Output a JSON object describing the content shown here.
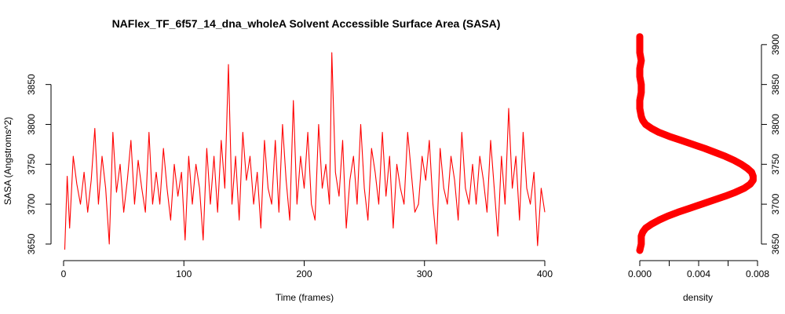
{
  "chart_data": [
    {
      "type": "line",
      "title": "NAFlex_TF_6f57_14_dna_wholeA Solvent Accessible Surface Area (SASA)",
      "xlabel": "Time (frames)",
      "ylabel": "SASA (Angstroms^2)",
      "xlim": [
        0,
        400
      ],
      "ylim": [
        3645,
        3890
      ],
      "x_ticks": [
        0,
        100,
        200,
        300,
        400
      ],
      "y_ticks": [
        3650,
        3700,
        3750,
        3800,
        3850
      ],
      "color": "#ff0000",
      "grid": false,
      "series": [
        {
          "x": [
            1,
            3,
            5,
            8,
            11,
            14,
            17,
            20,
            23,
            26,
            29,
            32,
            35,
            38,
            41,
            44,
            47,
            50,
            53,
            56,
            59,
            62,
            65,
            68,
            71,
            74,
            77,
            80,
            83,
            86,
            89,
            92,
            95,
            98,
            101,
            104,
            107,
            110,
            113,
            116,
            119,
            122,
            125,
            128,
            131,
            134,
            137,
            140,
            143,
            146,
            149,
            152,
            155,
            158,
            161,
            164,
            167,
            170,
            173,
            176,
            179,
            182,
            185,
            188,
            191,
            194,
            197,
            200,
            203,
            206,
            209,
            212,
            215,
            218,
            221,
            223,
            226,
            229,
            232,
            235,
            238,
            241,
            244,
            247,
            250,
            253,
            256,
            259,
            262,
            265,
            268,
            271,
            274,
            277,
            280,
            283,
            286,
            289,
            292,
            295,
            298,
            301,
            304,
            307,
            310,
            313,
            316,
            319,
            322,
            325,
            328,
            331,
            334,
            337,
            340,
            343,
            346,
            349,
            352,
            355,
            358,
            361,
            364,
            367,
            370,
            373,
            376,
            379,
            382,
            385,
            388,
            391,
            394,
            397,
            400
          ],
          "values": [
            3643,
            3735,
            3670,
            3760,
            3725,
            3700,
            3740,
            3690,
            3730,
            3795,
            3700,
            3760,
            3720,
            3650,
            3790,
            3715,
            3750,
            3690,
            3730,
            3780,
            3700,
            3755,
            3720,
            3690,
            3790,
            3700,
            3740,
            3700,
            3770,
            3720,
            3680,
            3750,
            3710,
            3740,
            3655,
            3760,
            3700,
            3750,
            3720,
            3655,
            3770,
            3700,
            3760,
            3690,
            3780,
            3720,
            3875,
            3700,
            3760,
            3680,
            3790,
            3730,
            3760,
            3700,
            3740,
            3670,
            3780,
            3720,
            3700,
            3780,
            3690,
            3800,
            3730,
            3680,
            3830,
            3700,
            3760,
            3720,
            3790,
            3700,
            3680,
            3800,
            3720,
            3750,
            3700,
            3890,
            3740,
            3710,
            3780,
            3670,
            3730,
            3760,
            3700,
            3800,
            3720,
            3680,
            3770,
            3740,
            3700,
            3790,
            3710,
            3760,
            3670,
            3750,
            3720,
            3700,
            3790,
            3740,
            3690,
            3700,
            3760,
            3730,
            3780,
            3700,
            3650,
            3770,
            3720,
            3700,
            3760,
            3730,
            3680,
            3790,
            3720,
            3700,
            3750,
            3700,
            3760,
            3730,
            3690,
            3780,
            3720,
            3660,
            3760,
            3700,
            3820,
            3720,
            3760,
            3680,
            3790,
            3720,
            3700,
            3740,
            3648,
            3720,
            3690
          ]
        }
      ]
    },
    {
      "type": "line",
      "xlabel": "density",
      "ylabel": "",
      "xlim": [
        0,
        0.008
      ],
      "ylim": [
        3645,
        3890
      ],
      "x_ticks": [
        "0.000",
        "0.004",
        "0.008"
      ],
      "x_minor_ticks": [
        0.002,
        0.006
      ],
      "y_ticks": [
        3650,
        3700,
        3750,
        3800,
        3850,
        3900
      ],
      "y_axis_position": "right",
      "color": "#ff0000",
      "series": [
        {
          "y": [
            3642,
            3650,
            3660,
            3665,
            3670,
            3675,
            3680,
            3685,
            3690,
            3695,
            3700,
            3705,
            3710,
            3715,
            3720,
            3725,
            3730,
            3735,
            3740,
            3745,
            3750,
            3755,
            3760,
            3765,
            3770,
            3775,
            3780,
            3785,
            3790,
            3795,
            3800,
            3805,
            3810,
            3820,
            3830,
            3840,
            3850,
            3860,
            3870,
            3880,
            3890,
            3900,
            3910
          ],
          "density": [
            0.0,
            0.0001,
            0.0001,
            0.0002,
            0.0004,
            0.0008,
            0.0013,
            0.0019,
            0.0026,
            0.0034,
            0.0042,
            0.005,
            0.0058,
            0.0065,
            0.0071,
            0.0075,
            0.0077,
            0.0077,
            0.0076,
            0.0073,
            0.0069,
            0.0064,
            0.0058,
            0.0051,
            0.0044,
            0.0036,
            0.0028,
            0.002,
            0.0013,
            0.0008,
            0.0004,
            0.0002,
            0.0001,
            0.0,
            0.0,
            0.0001,
            0.0001,
            0.0,
            0.0,
            0.0001,
            0.0,
            0.0,
            0.0
          ]
        }
      ]
    }
  ]
}
